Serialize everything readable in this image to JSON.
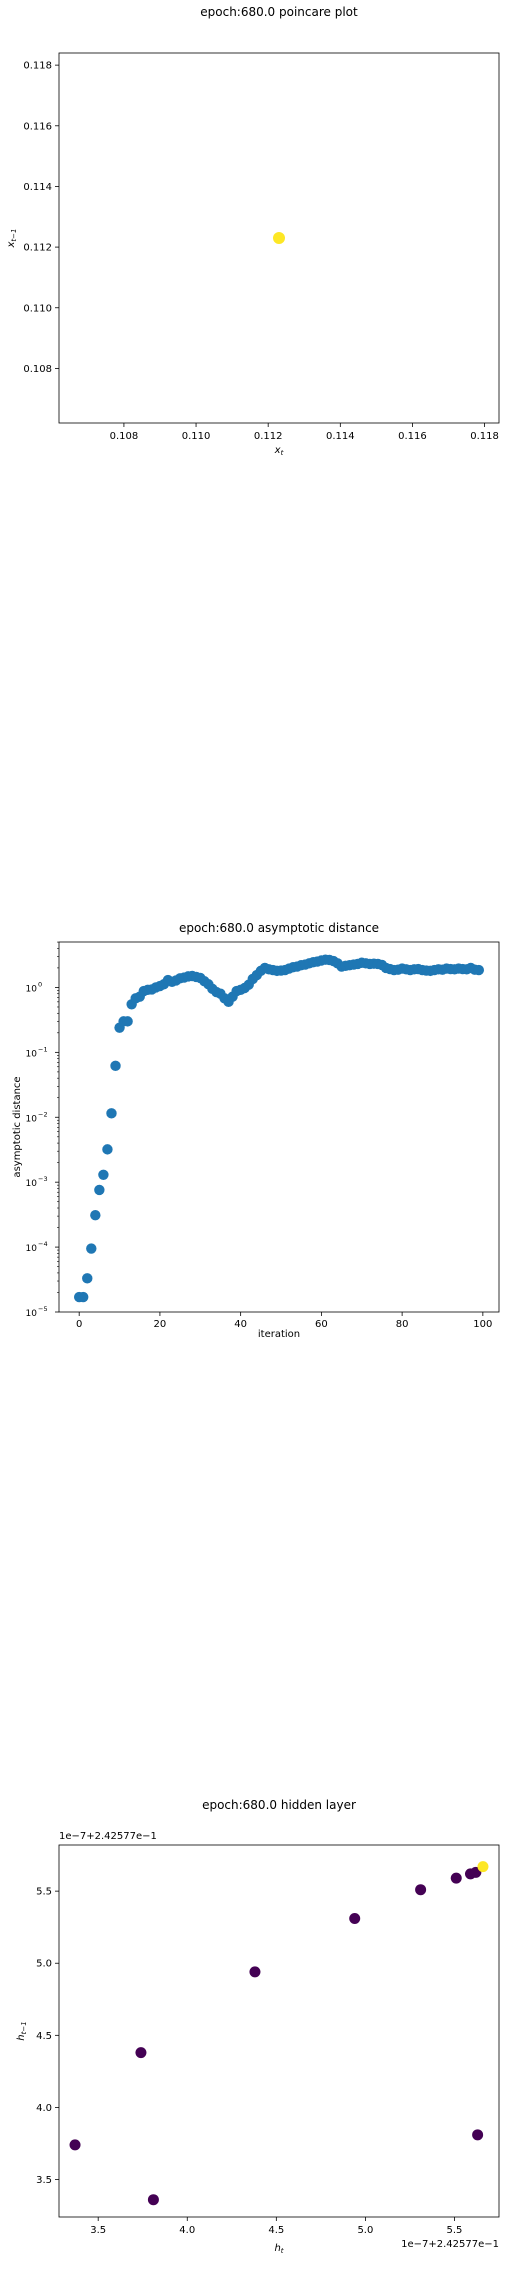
{
  "chart_data": [
    {
      "type": "scatter",
      "title": "epoch:680.0 poincare plot",
      "xlabel": "x_t",
      "ylabel": "x_{t-1}",
      "xlim": [
        0.1062,
        0.1184
      ],
      "ylim": [
        0.1062,
        0.1184
      ],
      "xticks": [
        0.108,
        0.11,
        0.112,
        0.114,
        0.116,
        0.118
      ],
      "yticks": [
        0.108,
        0.11,
        0.112,
        0.114,
        0.116,
        0.118
      ],
      "tick_labels": [
        "0.108",
        "0.110",
        "0.112",
        "0.114",
        "0.116",
        "0.118"
      ],
      "points": [
        {
          "x": 0.1123,
          "y": 0.1123
        }
      ],
      "color": "#fde725",
      "grid": false
    },
    {
      "type": "scatter",
      "title": "epoch:680.0 asymptotic distance",
      "xlabel": "iteration",
      "ylabel": "asymptotic distance",
      "yscale": "log",
      "xlim": [
        -5,
        104
      ],
      "ylim_exp": [
        -5,
        0.7
      ],
      "xticks": [
        0,
        20,
        40,
        60,
        80,
        100
      ],
      "xtick_labels": [
        "0",
        "20",
        "40",
        "60",
        "80",
        "100"
      ],
      "yticks_exp": [
        -5,
        -4,
        -3,
        -2,
        -1,
        0
      ],
      "ytick_bases": [
        "10",
        "10",
        "10",
        "10",
        "10",
        "10"
      ],
      "ytick_exps": [
        "−5",
        "−4",
        "−3",
        "−2",
        "−1",
        "0"
      ],
      "color": "#1f77b4",
      "grid": false,
      "y_values": [
        1.7e-05,
        1.7e-05,
        3.3e-05,
        9.5e-05,
        0.00031,
        0.00076,
        0.0013,
        0.0032,
        0.0115,
        0.062,
        0.24,
        0.3,
        0.3,
        0.55,
        0.68,
        0.72,
        0.88,
        0.92,
        0.93,
        1.0,
        1.05,
        1.12,
        1.3,
        1.22,
        1.28,
        1.38,
        1.42,
        1.48,
        1.5,
        1.45,
        1.4,
        1.25,
        1.12,
        0.95,
        0.85,
        0.8,
        0.68,
        0.6,
        0.72,
        0.88,
        0.92,
        0.98,
        1.1,
        1.35,
        1.55,
        1.8,
        2.0,
        1.9,
        1.85,
        1.8,
        1.82,
        1.85,
        1.95,
        2.05,
        2.1,
        2.2,
        2.25,
        2.35,
        2.45,
        2.5,
        2.6,
        2.68,
        2.65,
        2.55,
        2.35,
        2.1,
        2.15,
        2.2,
        2.25,
        2.3,
        2.4,
        2.35,
        2.3,
        2.32,
        2.3,
        2.22,
        2.0,
        1.92,
        1.85,
        1.88,
        1.95,
        1.9,
        1.85,
        1.9,
        1.92,
        1.85,
        1.82,
        1.8,
        1.85,
        1.9,
        1.88,
        1.95,
        1.92,
        1.9,
        1.95,
        1.92,
        1.9,
        2.0,
        1.88,
        1.85
      ]
    },
    {
      "type": "scatter",
      "title": "epoch:680.0 hidden layer",
      "xlabel": "h_t",
      "ylabel": "h_{t-1}",
      "offset_text": "1e−7+2.42577e−1",
      "xlim": [
        3.28,
        5.75
      ],
      "ylim": [
        3.24,
        5.82
      ],
      "xticks": [
        3.5,
        4.0,
        4.5,
        5.0,
        5.5
      ],
      "yticks": [
        3.5,
        4.0,
        4.5,
        5.0,
        5.5
      ],
      "tick_labels": [
        "3.5",
        "4.0",
        "4.5",
        "5.0",
        "5.5"
      ],
      "colors": {
        "early": "#440154",
        "last": "#fde725"
      },
      "points": [
        {
          "x": 3.37,
          "y": 3.74,
          "c": "early"
        },
        {
          "x": 3.74,
          "y": 4.38,
          "c": "early"
        },
        {
          "x": 3.81,
          "y": 3.36,
          "c": "early"
        },
        {
          "x": 4.38,
          "y": 4.94,
          "c": "early"
        },
        {
          "x": 4.94,
          "y": 5.31,
          "c": "early"
        },
        {
          "x": 5.31,
          "y": 5.51,
          "c": "early"
        },
        {
          "x": 5.51,
          "y": 5.59,
          "c": "early"
        },
        {
          "x": 5.59,
          "y": 5.62,
          "c": "early"
        },
        {
          "x": 5.62,
          "y": 5.63,
          "c": "early"
        },
        {
          "x": 5.63,
          "y": 3.81,
          "c": "early"
        },
        {
          "x": 5.66,
          "y": 5.67,
          "c": "last"
        }
      ],
      "grid": false
    }
  ]
}
